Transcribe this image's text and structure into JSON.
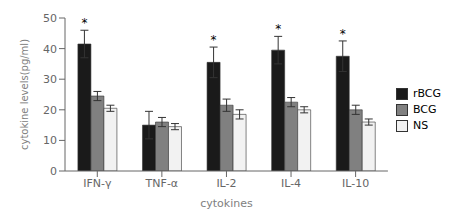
{
  "chart_data": {
    "type": "bar",
    "categories": [
      "IFN-γ",
      "TNF-α",
      "IL-2",
      "IL-4",
      "IL-10"
    ],
    "series": [
      {
        "name": "rBCG",
        "color": "#1a1a1a",
        "values": [
          41.5,
          15.0,
          35.5,
          39.5,
          37.5
        ],
        "errors": [
          4.5,
          4.5,
          5.0,
          4.5,
          5.0
        ],
        "annotations": [
          "*",
          null,
          "*",
          "*",
          "*"
        ]
      },
      {
        "name": "BCG",
        "color": "#808080",
        "values": [
          24.5,
          16.0,
          21.5,
          22.5,
          20.0
        ],
        "errors": [
          1.5,
          1.5,
          2.0,
          1.5,
          1.5
        ]
      },
      {
        "name": "NS",
        "color": "#f2f2f2",
        "values": [
          20.5,
          14.5,
          18.5,
          20.0,
          16.0
        ],
        "errors": [
          1.0,
          1.0,
          1.5,
          1.0,
          1.0
        ]
      }
    ],
    "xlabel": "cytokines",
    "ylabel": "cytokine levels(pg/ml)",
    "ylim": [
      0,
      50
    ],
    "yticks": [
      0,
      10,
      20,
      30,
      40,
      50
    ],
    "grid": false,
    "legend": "right"
  }
}
